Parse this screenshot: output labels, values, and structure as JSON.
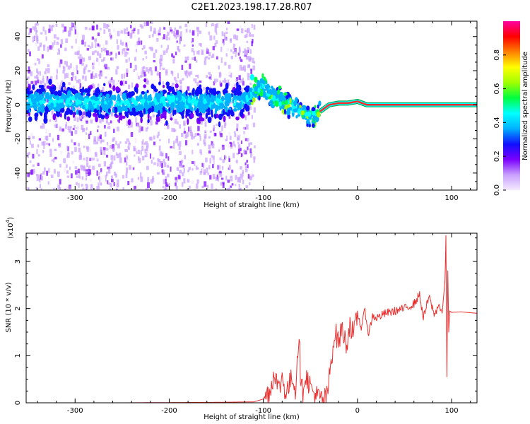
{
  "page": {
    "title": "C2E1.2023.198.17.28.R07"
  },
  "colorbar": {
    "label": "Normalized spectral amplitude",
    "ticks": [
      "0.0",
      "0.2",
      "0.4",
      "0.6",
      "0.8"
    ],
    "tick_values": [
      0.0,
      0.2,
      0.4,
      0.6,
      0.8
    ],
    "range": [
      0,
      1
    ],
    "colormap": [
      "#f4eaff",
      "#c9a0ff",
      "#7a00ff",
      "#1010ff",
      "#00b0ff",
      "#00ffff",
      "#00ff40",
      "#a0ff00",
      "#ffff00",
      "#ff8000",
      "#ff0000",
      "#ff00a0"
    ]
  },
  "colors": {
    "snr_line": "#e83030",
    "carrier_line": "#ff2a2a",
    "carrier_outline": "#00a040"
  },
  "chart_data": [
    {
      "type": "heatmap",
      "title": "C2E1.2023.198.17.28.R07",
      "xlabel": "Height of straight line (km)",
      "ylabel": "Frequency (Hz)",
      "xlim": [
        -352,
        127
      ],
      "ylim": [
        -50,
        49
      ],
      "x_ticks": [
        -300,
        -200,
        -100,
        0,
        100
      ],
      "x_tick_labels": [
        "-300",
        "-200",
        "-100",
        "0",
        "100"
      ],
      "y_ticks": [
        -40,
        -20,
        0,
        20,
        40
      ],
      "y_tick_labels": [
        "-40",
        "-20",
        "0",
        "20",
        "40"
      ],
      "carrier": {
        "x": [
          -40,
          -30,
          -20,
          -10,
          0,
          10,
          50,
          90,
          100,
          127
        ],
        "y": [
          -4,
          0,
          1,
          1,
          2,
          0,
          0,
          0,
          0,
          0
        ]
      },
      "centroid": {
        "x": [
          -352,
          -300,
          -250,
          -200,
          -150,
          -120,
          -110,
          -100,
          -90,
          -80,
          -70,
          -60,
          -50,
          -40
        ],
        "y": [
          2,
          2,
          1,
          2,
          1,
          2,
          8,
          10,
          4,
          2,
          0,
          -4,
          -8,
          -4
        ]
      }
    },
    {
      "type": "line",
      "title": "",
      "xlabel": "Height of straight line (km)",
      "ylabel": "SNR (10 * v/v)",
      "y_multiplier_label": "(x10",
      "y_multiplier_exp": "4",
      "y_multiplier_close": ")",
      "xlim": [
        -352,
        127
      ],
      "ylim": [
        0,
        3.6
      ],
      "x_ticks": [
        -300,
        -200,
        -100,
        0,
        100
      ],
      "x_tick_labels": [
        "-300",
        "-200",
        "-100",
        "0",
        "100"
      ],
      "y_ticks": [
        0,
        1,
        2,
        3
      ],
      "y_tick_labels": [
        "0",
        "1",
        "2",
        "3"
      ],
      "series": [
        {
          "values_x": [
            -352,
            -250,
            -150,
            -110,
            -100,
            -92,
            -88,
            -84,
            -80,
            -76,
            -72,
            -68,
            -66,
            -64,
            -62,
            -60,
            -58,
            -56,
            -52,
            -48,
            -44,
            -40,
            -36,
            -32,
            -28,
            -24,
            -20,
            -16,
            -12,
            -8,
            -4,
            0,
            4,
            8,
            12,
            16,
            20,
            30,
            40,
            50,
            60,
            66,
            70,
            76,
            82,
            86,
            90,
            93,
            94,
            95,
            96,
            97,
            98,
            100,
            110,
            127
          ],
          "values_y": [
            0.0,
            0.0,
            0.01,
            0.02,
            0.08,
            0.3,
            0.72,
            0.25,
            0.55,
            0.2,
            0.4,
            0.6,
            0.15,
            1.0,
            1.45,
            0.3,
            0.25,
            0.6,
            0.45,
            0.25,
            0.15,
            0.1,
            0.05,
            0.15,
            0.9,
            1.5,
            1.3,
            1.6,
            1.2,
            1.7,
            1.4,
            1.9,
            1.6,
            1.95,
            1.45,
            1.85,
            1.8,
            1.9,
            1.95,
            2.0,
            2.1,
            2.3,
            1.8,
            2.25,
            1.85,
            2.1,
            1.9,
            2.6,
            3.55,
            0.55,
            2.8,
            1.5,
            1.95,
            1.92,
            1.93,
            1.9
          ]
        }
      ]
    }
  ]
}
